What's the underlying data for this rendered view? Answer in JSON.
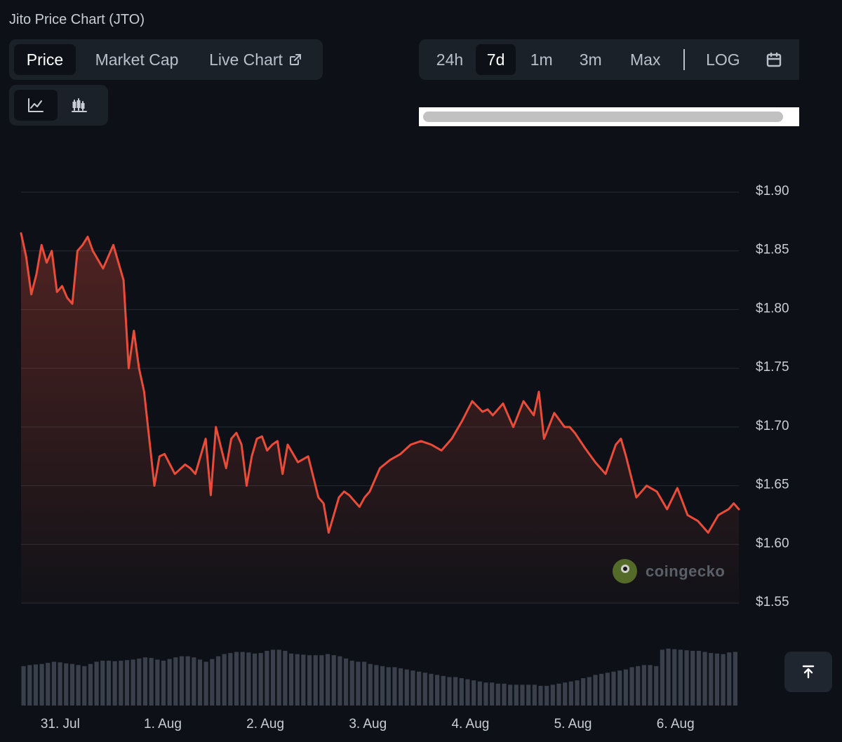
{
  "title": "Jito Price Chart (JTO)",
  "metric_tabs": [
    {
      "label": "Price",
      "active": true
    },
    {
      "label": "Market Cap",
      "active": false
    },
    {
      "label": "Live Chart",
      "active": false
    }
  ],
  "chart_type_buttons": [
    {
      "icon": "line-chart-icon",
      "active": true
    },
    {
      "icon": "candlestick-chart-icon",
      "active": false
    }
  ],
  "range_tabs": [
    {
      "label": "24h",
      "active": false
    },
    {
      "label": "7d",
      "active": true
    },
    {
      "label": "1m",
      "active": false
    },
    {
      "label": "3m",
      "active": false
    },
    {
      "label": "Max",
      "active": false
    }
  ],
  "log_label": "LOG",
  "watermark": "coingecko",
  "colors": {
    "line": "#ea4c3a",
    "background": "#0d1117",
    "grid": "#262c35",
    "volume": "#3a404b"
  },
  "chart_data": {
    "type": "area",
    "title": "",
    "xlabel": "",
    "ylabel": "",
    "ylim": [
      1.5,
      1.9
    ],
    "yticks": [
      "$1.90",
      "$1.85",
      "$1.80",
      "$1.75",
      "$1.70",
      "$1.65",
      "$1.60",
      "$1.55"
    ],
    "ytick_values": [
      1.9,
      1.85,
      1.8,
      1.75,
      1.7,
      1.65,
      1.6,
      1.55
    ],
    "xticks": [
      "31. Jul",
      "1. Aug",
      "2. Aug",
      "3. Aug",
      "4. Aug",
      "5. Aug",
      "6. Aug"
    ],
    "xtick_days": [
      0.3,
      1.3,
      2.3,
      3.3,
      4.3,
      5.3,
      6.3
    ],
    "xlim_days": [
      0.0,
      7.0
    ],
    "grid": true,
    "series": [
      {
        "x_days": [
          0.0,
          0.05,
          0.1,
          0.15,
          0.2,
          0.25,
          0.3,
          0.35,
          0.4,
          0.45,
          0.5,
          0.55,
          0.6,
          0.65,
          0.7,
          0.8,
          0.9,
          1.0,
          1.05,
          1.1,
          1.15,
          1.2,
          1.3,
          1.35,
          1.4,
          1.5,
          1.6,
          1.65,
          1.7,
          1.8,
          1.85,
          1.9,
          2.0,
          2.05,
          2.1,
          2.15,
          2.2,
          2.25,
          2.3,
          2.35,
          2.4,
          2.45,
          2.5,
          2.55,
          2.6,
          2.7,
          2.8,
          2.9,
          2.95,
          3.0,
          3.1,
          3.15,
          3.2,
          3.3,
          3.35,
          3.4,
          3.5,
          3.6,
          3.7,
          3.8,
          3.9,
          4.0,
          4.1,
          4.2,
          4.3,
          4.4,
          4.5,
          4.55,
          4.6,
          4.7,
          4.8,
          4.9,
          5.0,
          5.05,
          5.1,
          5.2,
          5.3,
          5.35,
          5.4,
          5.5,
          5.6,
          5.7,
          5.8,
          5.85,
          5.9,
          6.0,
          6.1,
          6.2,
          6.3,
          6.4,
          6.5,
          6.6,
          6.7,
          6.8,
          6.9,
          6.95,
          7.0
        ],
        "values": [
          1.865,
          1.845,
          1.813,
          1.83,
          1.855,
          1.84,
          1.85,
          1.815,
          1.82,
          1.81,
          1.805,
          1.85,
          1.855,
          1.862,
          1.85,
          1.835,
          1.855,
          1.825,
          1.75,
          1.782,
          1.75,
          1.73,
          1.65,
          1.675,
          1.677,
          1.66,
          1.668,
          1.665,
          1.66,
          1.69,
          1.642,
          1.7,
          1.665,
          1.69,
          1.695,
          1.685,
          1.65,
          1.675,
          1.69,
          1.692,
          1.68,
          1.685,
          1.688,
          1.66,
          1.685,
          1.67,
          1.675,
          1.64,
          1.635,
          1.61,
          1.64,
          1.645,
          1.642,
          1.632,
          1.64,
          1.645,
          1.665,
          1.672,
          1.677,
          1.685,
          1.688,
          1.685,
          1.68,
          1.69,
          1.705,
          1.722,
          1.713,
          1.715,
          1.71,
          1.72,
          1.7,
          1.722,
          1.71,
          1.73,
          1.69,
          1.712,
          1.7,
          1.7,
          1.695,
          1.682,
          1.67,
          1.66,
          1.685,
          1.69,
          1.675,
          1.64,
          1.65,
          1.645,
          1.63,
          1.648,
          1.625,
          1.62,
          1.61,
          1.625,
          1.63,
          1.635,
          1.63
        ]
      }
    ],
    "volume_relative": [
      0.72,
      0.74,
      0.75,
      0.76,
      0.78,
      0.8,
      0.79,
      0.77,
      0.76,
      0.74,
      0.72,
      0.76,
      0.8,
      0.82,
      0.82,
      0.81,
      0.82,
      0.83,
      0.84,
      0.86,
      0.88,
      0.87,
      0.84,
      0.82,
      0.85,
      0.88,
      0.9,
      0.9,
      0.88,
      0.84,
      0.8,
      0.85,
      0.9,
      0.94,
      0.96,
      0.98,
      0.98,
      0.97,
      0.95,
      0.96,
      1.0,
      1.02,
      1.02,
      1.0,
      0.95,
      0.94,
      0.93,
      0.92,
      0.92,
      0.92,
      0.94,
      0.92,
      0.9,
      0.86,
      0.82,
      0.8,
      0.8,
      0.76,
      0.74,
      0.72,
      0.7,
      0.7,
      0.68,
      0.66,
      0.64,
      0.62,
      0.6,
      0.58,
      0.56,
      0.54,
      0.52,
      0.52,
      0.5,
      0.48,
      0.46,
      0.44,
      0.42,
      0.42,
      0.4,
      0.4,
      0.38,
      0.38,
      0.38,
      0.38,
      0.38,
      0.36,
      0.36,
      0.38,
      0.4,
      0.42,
      0.44,
      0.46,
      0.5,
      0.52,
      0.56,
      0.58,
      0.6,
      0.62,
      0.64,
      0.66,
      0.7,
      0.72,
      0.74,
      0.74,
      0.72,
      1.02,
      1.04,
      1.03,
      1.02,
      1.01,
      1.0,
      1.0,
      0.98,
      0.96,
      0.95,
      0.94,
      0.97,
      0.98
    ]
  }
}
